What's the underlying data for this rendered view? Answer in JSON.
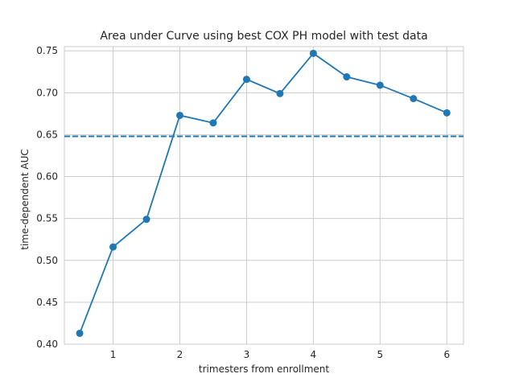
{
  "chart_data": {
    "type": "line",
    "title": "Area under Curve using best COX PH model with test data",
    "xlabel": "trimesters from enrollment",
    "ylabel": "time-dependent AUC",
    "xlim": [
      0.27,
      6.25
    ],
    "ylim": [
      0.4,
      0.755
    ],
    "x_ticks": [
      1,
      2,
      3,
      4,
      5,
      6
    ],
    "y_ticks": [
      0.4,
      0.45,
      0.5,
      0.55,
      0.6,
      0.65,
      0.7,
      0.75
    ],
    "grid": true,
    "series": [
      {
        "x": [
          0.5,
          1.0,
          1.5,
          2.0,
          2.5,
          3.0,
          3.5,
          4.0,
          4.5,
          5.0,
          5.5,
          6.0
        ],
        "values": [
          0.413,
          0.516,
          0.549,
          0.673,
          0.664,
          0.716,
          0.699,
          0.747,
          0.719,
          0.709,
          0.693,
          0.676
        ],
        "color": "#1f77b4",
        "marker": "circle"
      }
    ],
    "reference_line": {
      "orientation": "horizontal",
      "y": 0.648,
      "style": "dashed",
      "color": "#1f77b4"
    }
  }
}
